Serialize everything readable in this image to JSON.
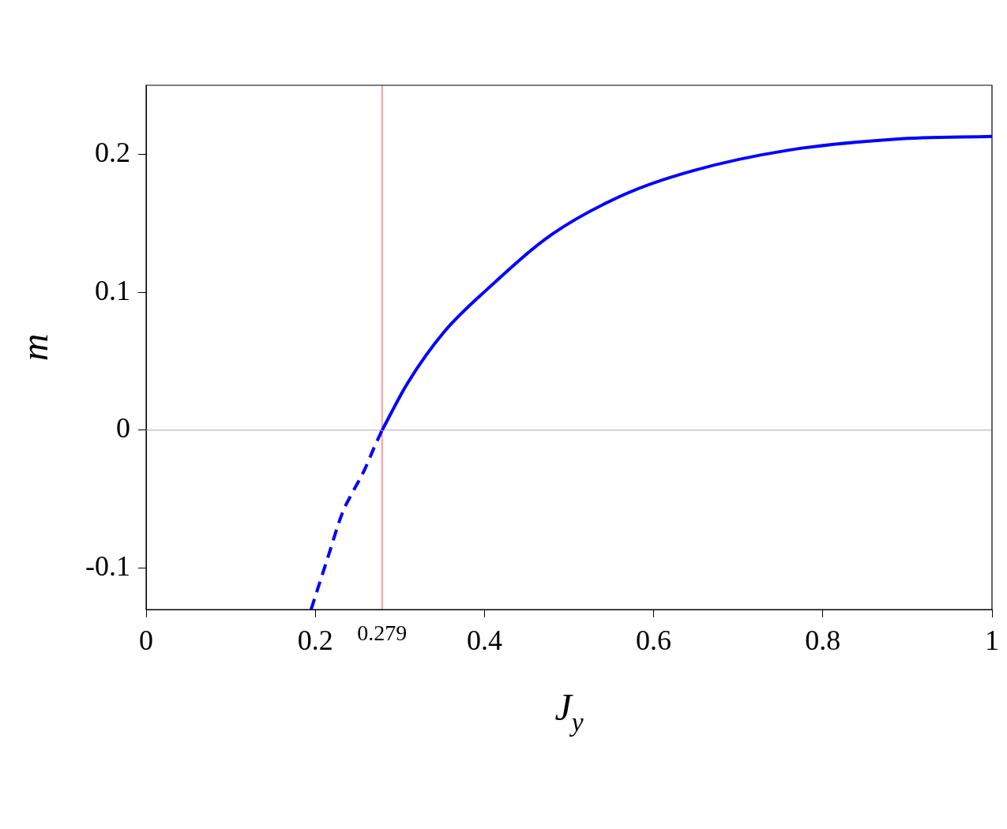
{
  "chart_data": {
    "type": "line",
    "xlabel": "J$_{y}$",
    "ylabel": "m",
    "xlim": [
      0,
      1
    ],
    "ylim": [
      -0.13,
      0.25
    ],
    "xticks": [
      0,
      0.2,
      0.4,
      0.6,
      0.8,
      1
    ],
    "yticks": [
      -0.1,
      0,
      0.1,
      0.2
    ],
    "grid": false,
    "legend": false,
    "marker": "none",
    "series": [
      {
        "color": "#0000ff",
        "line_style": "dashed",
        "x": [
          0.195,
          0.215,
          0.232,
          0.245,
          0.258,
          0.27,
          0.279
        ],
        "values": [
          -0.13,
          -0.092,
          -0.06,
          -0.044,
          -0.029,
          -0.012,
          0
        ]
      },
      {
        "color": "#0000ff",
        "line_style": "solid",
        "x": [
          0.279,
          0.309,
          0.352,
          0.403,
          0.48,
          0.566,
          0.646,
          0.76,
          0.886,
          1
        ],
        "values": [
          0,
          0.034,
          0.071,
          0.102,
          0.142,
          0.171,
          0.188,
          0.203,
          0.211,
          0.213
        ]
      }
    ],
    "ref_lines": [
      {
        "axis": "x",
        "value": 0.279,
        "label": "0.279",
        "color": "#ff9999"
      },
      {
        "axis": "y",
        "value": 0,
        "color": "#d0d0d0"
      }
    ]
  }
}
